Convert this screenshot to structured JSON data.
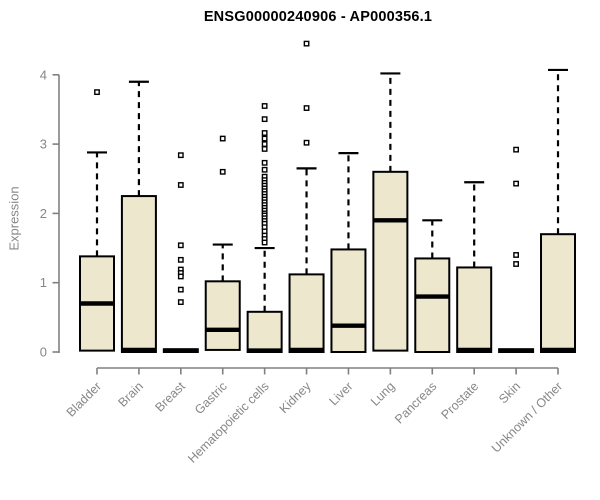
{
  "chart_data": {
    "type": "boxplot",
    "title": "ENSG00000240906 - AP000356.1",
    "ylabel": "Expression",
    "xlabel": "",
    "ylim": [
      0,
      4.5
    ],
    "yticks": [
      0,
      1,
      2,
      3,
      4
    ],
    "grid": false,
    "legend": "none",
    "colors": {
      "box_fill": "#ECE7CD",
      "box_stroke": "#000000",
      "median": "#000000",
      "whisker": "#000000",
      "outlier_stroke": "#000000",
      "outlier_fill": "#ffffff",
      "axis": "#808080",
      "tick_label": "#878787",
      "title": "#000000",
      "background": "#ffffff"
    },
    "categories": [
      "Bladder",
      "Brain",
      "Breast",
      "Gastric",
      "Hematopoietic cells",
      "Kidney",
      "Liver",
      "Lung",
      "Pancreas",
      "Prostate",
      "Skin",
      "Unknown / Other"
    ],
    "series": [
      {
        "name": "Bladder",
        "whisker_low": 0.02,
        "q1": 0.02,
        "median": 0.7,
        "q3": 1.38,
        "whisker_high": 2.88,
        "outliers": [
          3.75
        ]
      },
      {
        "name": "Brain",
        "whisker_low": 0.0,
        "q1": 0.0,
        "median": 0.03,
        "q3": 2.25,
        "whisker_high": 3.9,
        "outliers": []
      },
      {
        "name": "Breast",
        "whisker_low": 0.0,
        "q1": 0.0,
        "median": 0.02,
        "q3": 0.04,
        "whisker_high": 0.04,
        "outliers": [
          2.84,
          2.41,
          1.54,
          1.33,
          1.19,
          1.14,
          1.09,
          0.9,
          0.72
        ]
      },
      {
        "name": "Gastric",
        "whisker_low": 0.03,
        "q1": 0.03,
        "median": 0.32,
        "q3": 1.02,
        "whisker_high": 1.55,
        "outliers": [
          3.08,
          2.6
        ]
      },
      {
        "name": "Hematopoietic cells",
        "whisker_low": 0.0,
        "q1": 0.0,
        "median": 0.02,
        "q3": 0.58,
        "whisker_high": 1.5,
        "outliers": [
          3.55,
          3.36,
          3.16,
          3.08,
          3.0,
          2.93,
          2.73,
          2.63,
          2.53,
          2.48,
          2.44,
          2.4,
          2.36,
          2.32,
          2.28,
          2.24,
          2.2,
          2.16,
          2.12,
          2.08,
          2.04,
          2.0,
          1.97,
          1.93,
          1.89,
          1.85,
          1.8,
          1.74,
          1.68,
          1.63,
          1.58
        ]
      },
      {
        "name": "Kidney",
        "whisker_low": 0.0,
        "q1": 0.0,
        "median": 0.03,
        "q3": 1.12,
        "whisker_high": 2.65,
        "outliers": [
          4.45,
          3.52,
          3.02
        ]
      },
      {
        "name": "Liver",
        "whisker_low": 0.0,
        "q1": 0.0,
        "median": 0.38,
        "q3": 1.48,
        "whisker_high": 2.87,
        "outliers": []
      },
      {
        "name": "Lung",
        "whisker_low": 0.02,
        "q1": 0.02,
        "median": 1.9,
        "q3": 2.6,
        "whisker_high": 4.02,
        "outliers": []
      },
      {
        "name": "Pancreas",
        "whisker_low": 0.0,
        "q1": 0.0,
        "median": 0.8,
        "q3": 1.35,
        "whisker_high": 1.9,
        "outliers": []
      },
      {
        "name": "Prostate",
        "whisker_low": 0.0,
        "q1": 0.0,
        "median": 0.03,
        "q3": 1.22,
        "whisker_high": 2.45,
        "outliers": []
      },
      {
        "name": "Skin",
        "whisker_low": 0.0,
        "q1": 0.0,
        "median": 0.02,
        "q3": 0.04,
        "whisker_high": 0.04,
        "outliers": [
          2.92,
          2.43,
          1.4,
          1.27
        ]
      },
      {
        "name": "Unknown / Other",
        "whisker_low": 0.0,
        "q1": 0.0,
        "median": 0.03,
        "q3": 1.7,
        "whisker_high": 4.07,
        "outliers": []
      }
    ]
  }
}
